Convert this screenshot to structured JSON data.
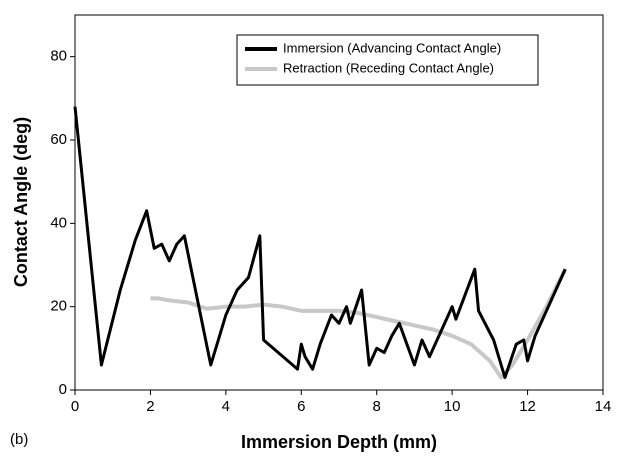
{
  "chart_data": {
    "type": "line",
    "panel_label": "(b)",
    "x_label": "Immersion Depth (mm)",
    "y_label": "Contact Angle (deg)",
    "xlim": [
      0,
      14
    ],
    "xticks": [
      0,
      2,
      4,
      6,
      8,
      10,
      12,
      14
    ],
    "ylim": [
      0,
      90
    ],
    "yticks": [
      0,
      20,
      40,
      60,
      80
    ],
    "grid": false,
    "legend": "upper right",
    "series": [
      {
        "name": "Immersion (Advancing Contact Angle)",
        "color": "#000000",
        "x": [
          0,
          0.7,
          1.2,
          1.6,
          1.9,
          2.1,
          2.3,
          2.5,
          2.7,
          2.9,
          3.6,
          4.0,
          4.3,
          4.6,
          4.9,
          5.0,
          5.9,
          6.0,
          6.1,
          6.3,
          6.5,
          6.8,
          7.0,
          7.2,
          7.3,
          7.6,
          7.8,
          8.0,
          8.2,
          8.4,
          8.6,
          9.0,
          9.2,
          9.4,
          9.8,
          10.0,
          10.1,
          10.6,
          10.7,
          11.1,
          11.4,
          11.7,
          11.9,
          12.0,
          12.2,
          13.0
        ],
        "values": [
          68,
          6,
          24,
          36,
          43,
          34,
          35,
          31,
          35,
          37,
          6,
          18,
          24,
          27,
          37,
          12,
          5,
          11,
          8,
          5,
          11,
          18,
          16,
          20,
          16,
          24,
          6,
          10,
          9,
          13,
          16,
          6,
          12,
          8,
          16,
          20,
          17,
          29,
          19,
          12,
          3,
          11,
          12,
          7,
          13,
          29
        ]
      },
      {
        "name": "Retraction (Receding Contact Angle)",
        "color": "#c8c8c8",
        "x": [
          2.0,
          2.2,
          2.5,
          3.0,
          3.5,
          4.0,
          4.5,
          5.0,
          5.5,
          6.0,
          6.5,
          7.0,
          7.5,
          8.0,
          8.5,
          9.0,
          9.5,
          10.0,
          10.5,
          11.0,
          11.3,
          11.6,
          12.0,
          12.5,
          13.0
        ],
        "values": [
          22,
          22,
          21.5,
          21,
          19.5,
          20,
          20,
          20.5,
          20,
          19,
          19,
          19,
          18.5,
          17.5,
          16.5,
          15.5,
          14.5,
          13,
          11,
          7,
          3,
          6,
          12,
          20,
          29
        ]
      }
    ]
  }
}
